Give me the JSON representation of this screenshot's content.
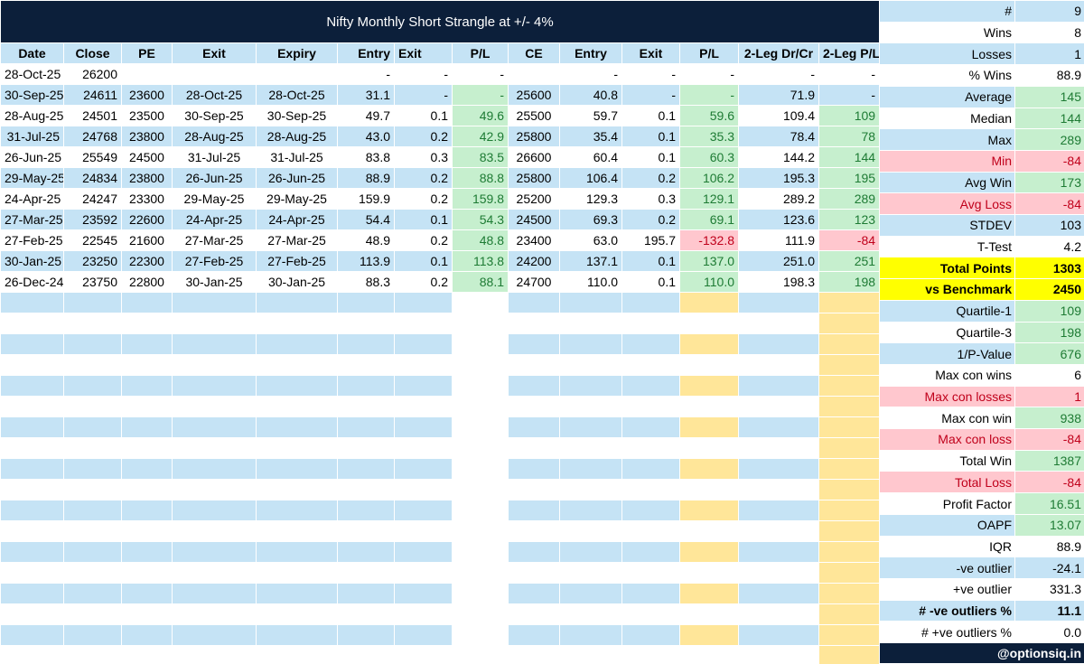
{
  "title": "Nifty Monthly Short Strangle at +/- 4%",
  "headers": [
    "Date",
    "Close",
    "PE",
    "Exit",
    "Expiry",
    "Entry",
    "Exit",
    "P/L",
    "CE",
    "Entry",
    "Exit",
    "P/L",
    "2-Leg Dr/Cr",
    "2-Leg P/L"
  ],
  "rows": [
    {
      "date": "28-Oct-25",
      "close": "26200",
      "pe": "",
      "exit": "",
      "expiry": "",
      "pe_entry": "-",
      "pe_exit": "-",
      "pe_pl": "-",
      "ce": "",
      "ce_entry": "-",
      "ce_exit": "-",
      "ce_pl": "-",
      "drcr": "-",
      "leg_pl": "-"
    },
    {
      "date": "30-Sep-25",
      "close": "24611",
      "pe": "23600",
      "exit": "28-Oct-25",
      "expiry": "28-Oct-25",
      "pe_entry": "31.1",
      "pe_exit": "-",
      "pe_pl": "-",
      "ce": "25600",
      "ce_entry": "40.8",
      "ce_exit": "-",
      "ce_pl": "-",
      "drcr": "71.9",
      "leg_pl": "-"
    },
    {
      "date": "28-Aug-25",
      "close": "24501",
      "pe": "23500",
      "exit": "30-Sep-25",
      "expiry": "30-Sep-25",
      "pe_entry": "49.7",
      "pe_exit": "0.1",
      "pe_pl": "49.6",
      "ce": "25500",
      "ce_entry": "59.7",
      "ce_exit": "0.1",
      "ce_pl": "59.6",
      "drcr": "109.4",
      "leg_pl": "109"
    },
    {
      "date": "31-Jul-25",
      "close": "24768",
      "pe": "23800",
      "exit": "28-Aug-25",
      "expiry": "28-Aug-25",
      "pe_entry": "43.0",
      "pe_exit": "0.2",
      "pe_pl": "42.9",
      "ce": "25800",
      "ce_entry": "35.4",
      "ce_exit": "0.1",
      "ce_pl": "35.3",
      "drcr": "78.4",
      "leg_pl": "78"
    },
    {
      "date": "26-Jun-25",
      "close": "25549",
      "pe": "24500",
      "exit": "31-Jul-25",
      "expiry": "31-Jul-25",
      "pe_entry": "83.8",
      "pe_exit": "0.3",
      "pe_pl": "83.5",
      "ce": "26600",
      "ce_entry": "60.4",
      "ce_exit": "0.1",
      "ce_pl": "60.3",
      "drcr": "144.2",
      "leg_pl": "144"
    },
    {
      "date": "29-May-25",
      "close": "24834",
      "pe": "23800",
      "exit": "26-Jun-25",
      "expiry": "26-Jun-25",
      "pe_entry": "88.9",
      "pe_exit": "0.2",
      "pe_pl": "88.8",
      "ce": "25800",
      "ce_entry": "106.4",
      "ce_exit": "0.2",
      "ce_pl": "106.2",
      "drcr": "195.3",
      "leg_pl": "195"
    },
    {
      "date": "24-Apr-25",
      "close": "24247",
      "pe": "23300",
      "exit": "29-May-25",
      "expiry": "29-May-25",
      "pe_entry": "159.9",
      "pe_exit": "0.2",
      "pe_pl": "159.8",
      "ce": "25200",
      "ce_entry": "129.3",
      "ce_exit": "0.3",
      "ce_pl": "129.1",
      "drcr": "289.2",
      "leg_pl": "289"
    },
    {
      "date": "27-Mar-25",
      "close": "23592",
      "pe": "22600",
      "exit": "24-Apr-25",
      "expiry": "24-Apr-25",
      "pe_entry": "54.4",
      "pe_exit": "0.1",
      "pe_pl": "54.3",
      "ce": "24500",
      "ce_entry": "69.3",
      "ce_exit": "0.2",
      "ce_pl": "69.1",
      "drcr": "123.6",
      "leg_pl": "123"
    },
    {
      "date": "27-Feb-25",
      "close": "22545",
      "pe": "21600",
      "exit": "27-Mar-25",
      "expiry": "27-Mar-25",
      "pe_entry": "48.9",
      "pe_exit": "0.2",
      "pe_pl": "48.8",
      "ce": "23400",
      "ce_entry": "63.0",
      "ce_exit": "195.7",
      "ce_pl": "-132.8",
      "drcr": "111.9",
      "leg_pl": "-84"
    },
    {
      "date": "30-Jan-25",
      "close": "23250",
      "pe": "22300",
      "exit": "27-Feb-25",
      "expiry": "27-Feb-25",
      "pe_entry": "113.9",
      "pe_exit": "0.1",
      "pe_pl": "113.8",
      "ce": "24200",
      "ce_entry": "137.1",
      "ce_exit": "0.1",
      "ce_pl": "137.0",
      "drcr": "251.0",
      "leg_pl": "251"
    },
    {
      "date": "26-Dec-24",
      "close": "23750",
      "pe": "22800",
      "exit": "30-Jan-25",
      "expiry": "30-Jan-25",
      "pe_entry": "88.3",
      "pe_exit": "0.2",
      "pe_pl": "88.1",
      "ce": "24700",
      "ce_entry": "110.0",
      "ce_exit": "0.1",
      "ce_pl": "110.0",
      "drcr": "198.3",
      "leg_pl": "198"
    }
  ],
  "stats": [
    {
      "label": "#",
      "value": "9"
    },
    {
      "label": "Wins",
      "value": "8"
    },
    {
      "label": "Losses",
      "value": "1"
    },
    {
      "label": "% Wins",
      "value": "88.9"
    },
    {
      "label": "Average",
      "value": "145"
    },
    {
      "label": "Median",
      "value": "144"
    },
    {
      "label": "Max",
      "value": "289"
    },
    {
      "label": "Min",
      "value": "-84"
    },
    {
      "label": "Avg Win",
      "value": "173"
    },
    {
      "label": "Avg Loss",
      "value": "-84"
    },
    {
      "label": "STDEV",
      "value": "103"
    },
    {
      "label": "T-Test",
      "value": "4.2"
    },
    {
      "label": "Total  Points",
      "value": "1303"
    },
    {
      "label": "vs Benchmark",
      "value": "2450"
    },
    {
      "label": "Quartile-1",
      "value": "109"
    },
    {
      "label": "Quartile-3",
      "value": "198"
    },
    {
      "label": "1/P-Value",
      "value": "676"
    },
    {
      "label": "Max con wins",
      "value": "6"
    },
    {
      "label": "Max con losses",
      "value": "1"
    },
    {
      "label": "Max con win",
      "value": "938"
    },
    {
      "label": "Max con loss",
      "value": "-84"
    },
    {
      "label": "Total Win",
      "value": "1387"
    },
    {
      "label": "Total Loss",
      "value": "-84"
    },
    {
      "label": "Profit Factor",
      "value": "16.51"
    },
    {
      "label": "OAPF",
      "value": "13.07"
    },
    {
      "label": "IQR",
      "value": "88.9"
    },
    {
      "label": "-ve outlier",
      "value": "-24.1"
    },
    {
      "label": "+ve outlier",
      "value": "331.3"
    },
    {
      "label": "# -ve outliers %",
      "value": "11.1"
    },
    {
      "label": "# +ve outliers %",
      "value": "0.0"
    }
  ],
  "brand": "@optionsiq.in",
  "colors": {
    "header_dark": "#0c1f3a",
    "row_blue": "#c5e3f5",
    "positive_fill": "#c6efce",
    "positive_text": "#1e7b34",
    "negative_fill": "#ffc7ce",
    "negative_text": "#c0001b",
    "highlight": "#ffff00",
    "column_fill": "#ffe699"
  }
}
